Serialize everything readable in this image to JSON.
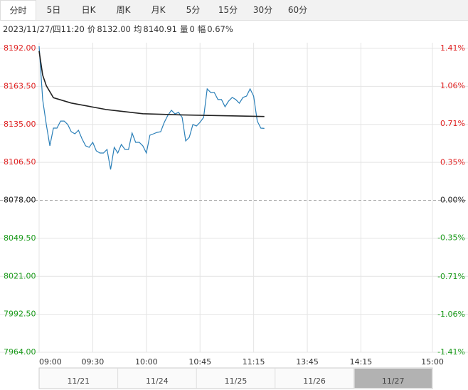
{
  "tabs": [
    "分时",
    "5日",
    "日K",
    "周K",
    "月K",
    "5分",
    "15分",
    "30分",
    "60分"
  ],
  "selected_tab": 0,
  "info": {
    "time": "2023/11/27/四11:20",
    "fields": [
      {
        "label": "价",
        "value": "8132.00"
      },
      {
        "label": "均",
        "value": "8140.91"
      },
      {
        "label": "量",
        "value": "0"
      },
      {
        "label": "幅",
        "value": "0.67%"
      }
    ]
  },
  "chart_data": {
    "type": "line",
    "x": [
      0,
      2,
      4,
      6,
      8,
      10,
      12,
      14,
      16,
      18,
      20,
      22,
      24,
      26,
      28,
      30,
      32,
      34,
      36,
      38,
      40,
      42,
      44,
      46,
      48,
      50,
      52,
      54,
      56,
      58,
      60,
      62,
      64,
      66,
      68,
      70,
      72,
      74,
      76,
      78,
      80,
      82,
      84,
      86,
      88,
      90,
      92,
      94,
      96,
      98,
      100,
      102,
      104,
      106,
      108,
      110,
      112,
      114,
      116,
      118,
      120,
      122,
      124,
      126
    ],
    "series": [
      {
        "color": "#2a7fb8",
        "values": [
          8193.6,
          8153.6,
          8134.9,
          8118.9,
          8132.2,
          8132.2,
          8137.5,
          8137.5,
          8134.9,
          8129.5,
          8127.9,
          8130.6,
          8124.2,
          8118.9,
          8117.8,
          8121.5,
          8115.1,
          8113.5,
          8113.5,
          8116.2,
          8101.2,
          8117.8,
          8113.5,
          8119.9,
          8116.2,
          8116.2,
          8128.5,
          8121.5,
          8121.5,
          8118.9,
          8113.5,
          8126.9,
          8127.9,
          8129.0,
          8129.5,
          8136.5,
          8141.8,
          8145.6,
          8142.9,
          8144.0,
          8140.2,
          8122.6,
          8125.3,
          8134.9,
          8133.8,
          8136.5,
          8140.2,
          8161.6,
          8158.9,
          8158.9,
          8153.6,
          8153.6,
          8148.2,
          8152.5,
          8155.2,
          8153.6,
          8150.9,
          8155.2,
          8156.2,
          8161.6,
          8156.2,
          8137.5,
          8132.2,
          8132.0
        ]
      },
      {
        "color": "#222222",
        "x": [
          0,
          2,
          4,
          8,
          18,
          38,
          58,
          82,
          126
        ],
        "values": [
          8190,
          8172,
          8164,
          8155,
          8151,
          8146,
          8143,
          8142,
          8140.91
        ]
      }
    ],
    "xlim": [
      0,
      220
    ],
    "xticks": [
      {
        "value": 0,
        "label": "09:00"
      },
      {
        "value": 30,
        "label": "09:30"
      },
      {
        "value": 60,
        "label": "10:00"
      },
      {
        "value": 90,
        "label": "10:45"
      },
      {
        "value": 120,
        "label": "11:15"
      },
      {
        "value": 150,
        "label": "13:45"
      },
      {
        "value": 180,
        "label": "14:15"
      },
      {
        "value": 220,
        "label": "15:00"
      }
    ],
    "ylim": [
      7964,
      8192
    ],
    "yticks": [
      {
        "value": 8192,
        "label": "8192.00"
      },
      {
        "value": 8163.5,
        "label": "8163.50"
      },
      {
        "value": 8135,
        "label": "8135.00"
      },
      {
        "value": 8106.5,
        "label": "8106.50"
      },
      {
        "value": 8078,
        "label": "8078.00"
      },
      {
        "value": 8049.5,
        "label": "8049.50"
      },
      {
        "value": 8021,
        "label": "8021.00"
      },
      {
        "value": 7992.5,
        "label": "7992.50"
      },
      {
        "value": 7964,
        "label": "7964.00"
      }
    ],
    "y2lim": [
      -1.41,
      1.41
    ],
    "y2ticks": [
      {
        "value": 1.41,
        "label": "1.41%"
      },
      {
        "value": 1.06,
        "label": "1.06%"
      },
      {
        "value": 0.71,
        "label": "0.71%"
      },
      {
        "value": 0.35,
        "label": "0.35%"
      },
      {
        "value": 0,
        "label": "0.00%"
      },
      {
        "value": -0.35,
        "label": "-0.35%"
      },
      {
        "value": -0.71,
        "label": "-0.71%"
      },
      {
        "value": -1.06,
        "label": "-1.06%"
      },
      {
        "value": -1.41,
        "label": "-1.41%"
      }
    ],
    "up_color": "#e02020",
    "down_color": "#1a9a1a",
    "grid": true,
    "navigator": [
      "11/21",
      "11/24",
      "11/25",
      "11/26",
      "11/27"
    ],
    "navigator_selected": 4
  }
}
